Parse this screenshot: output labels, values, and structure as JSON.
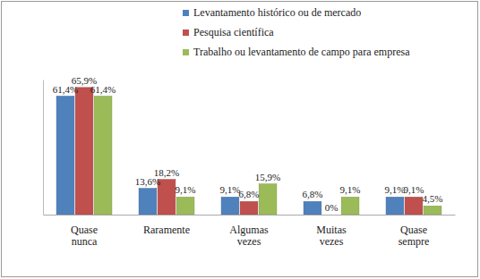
{
  "chart_data": {
    "type": "bar",
    "categories": [
      "Quase nunca",
      "Raramente",
      "Algumas vezes",
      "Muitas vezes",
      "Quase sempre"
    ],
    "series": [
      {
        "name": "Levantamento histórico ou de mercado",
        "color": "#4f81bd",
        "values": [
          61.4,
          13.6,
          9.1,
          6.8,
          9.1
        ],
        "value_labels": [
          "61,4%",
          "13,6%",
          "9,1%",
          "6,8%",
          "9,1%"
        ]
      },
      {
        "name": "Pesquisa científica",
        "color": "#c0504d",
        "values": [
          65.9,
          18.2,
          6.8,
          0,
          9.1
        ],
        "value_labels": [
          "65,9%",
          "18,2%",
          "6,8%",
          "0%",
          "9,1%"
        ]
      },
      {
        "name": "Trabalho ou levantamento de campo para empresa",
        "color": "#9bbb59",
        "values": [
          61.4,
          9.1,
          15.9,
          9.1,
          4.5
        ],
        "value_labels": [
          "61,4%",
          "9,1%",
          "15,9%",
          "9,1%",
          "4,5%"
        ]
      }
    ],
    "ylim": [
      0,
      70
    ],
    "data_labels": true,
    "tick_labels": "x",
    "grid": false,
    "legend": "top-right"
  }
}
